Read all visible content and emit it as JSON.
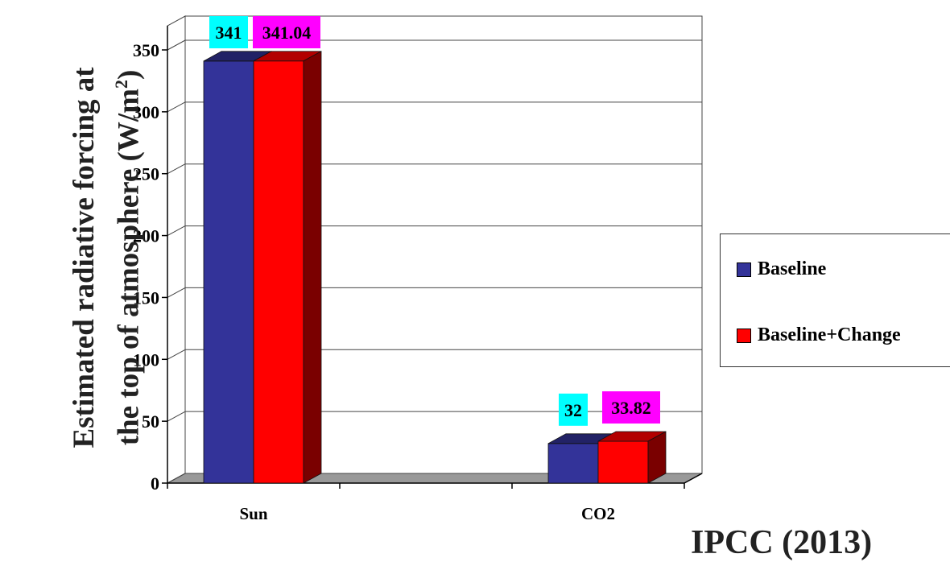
{
  "chart_data": {
    "type": "bar",
    "categories": [
      "Sun",
      "CO2"
    ],
    "series": [
      {
        "name": "Baseline",
        "values": [
          341,
          32
        ],
        "color": "#333399",
        "label_bg": "#00ffff"
      },
      {
        "name": "Baseline+Change",
        "values": [
          341.04,
          33.82
        ],
        "color": "#ff0000",
        "label_bg": "#ff00ff"
      }
    ],
    "data_labels": [
      [
        "341",
        "32"
      ],
      [
        "341.04",
        "33.82"
      ]
    ],
    "ylabel_line1": "Estimated radiative forcing at",
    "ylabel_line2": "the top of atmosphere (W/m",
    "ylabel_sup": "2",
    "ylabel_end": ")",
    "ylim": [
      0,
      370
    ],
    "yticks": [
      0,
      50,
      100,
      150,
      200,
      250,
      300,
      350
    ],
    "grid": true,
    "legend_position": "right"
  },
  "source": "IPCC (2013)"
}
